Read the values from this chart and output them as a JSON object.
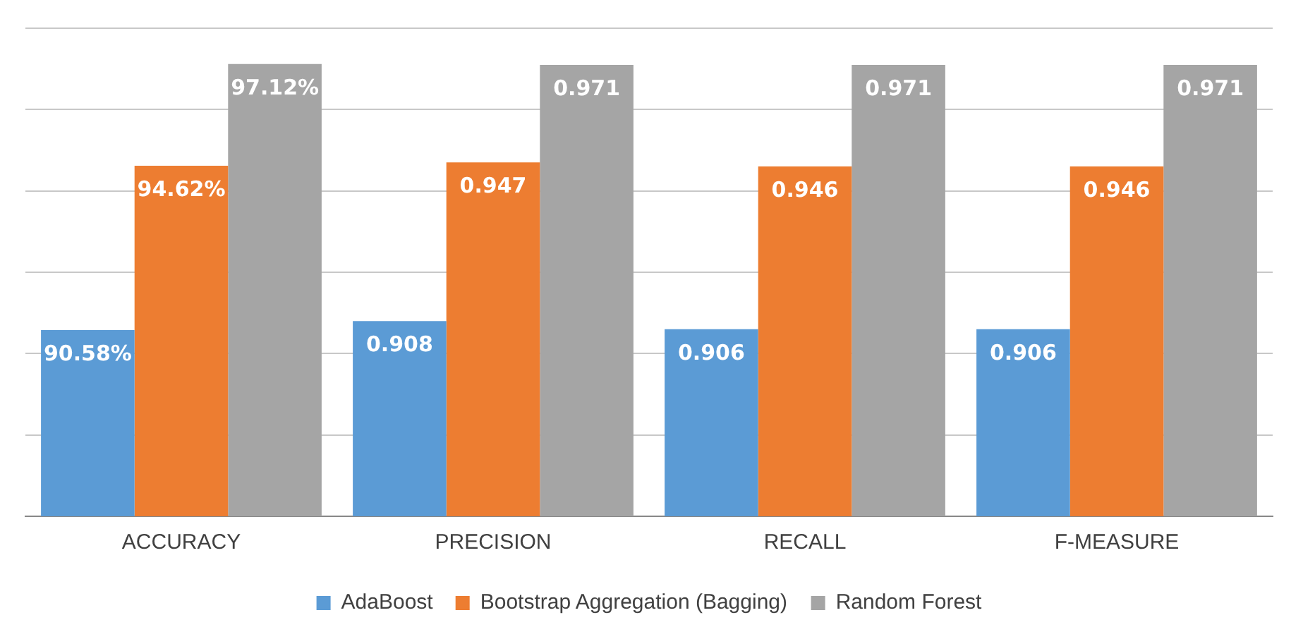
{
  "chart_data": {
    "type": "bar",
    "categories": [
      "ACCURACY",
      "PRECISION",
      "RECALL",
      "F-MEASURE"
    ],
    "series": [
      {
        "name": "AdaBoost",
        "color": "#5b9bd5",
        "values": [
          0.9058,
          0.908,
          0.906,
          0.906
        ],
        "value_labels": [
          "90.58%",
          "0.908",
          "0.906",
          "0.906"
        ]
      },
      {
        "name": "Bootstrap Aggregation (Bagging)",
        "color": "#ed7d31",
        "values": [
          0.9462,
          0.947,
          0.946,
          0.946
        ],
        "value_labels": [
          "94.62%",
          "0.947",
          "0.946",
          "0.946"
        ]
      },
      {
        "name": "Random Forest",
        "color": "#a5a5a5",
        "values": [
          0.9712,
          0.971,
          0.971,
          0.971
        ],
        "value_labels": [
          "97.12%",
          "0.971",
          "0.971",
          "0.971"
        ]
      }
    ],
    "ylim": [
      0.86,
      0.98
    ],
    "yticks": [
      {
        "value": 0.86,
        "label": null
      },
      {
        "value": 0.88,
        "label": null
      },
      {
        "value": 0.9,
        "label": null
      },
      {
        "value": 0.92,
        "label": null
      },
      {
        "value": 0.94,
        "label": null
      },
      {
        "value": 0.96,
        "label": null
      },
      {
        "value": 0.98,
        "label": null
      }
    ],
    "tick_labels": "x",
    "grid": "y",
    "legend": "bottom"
  }
}
